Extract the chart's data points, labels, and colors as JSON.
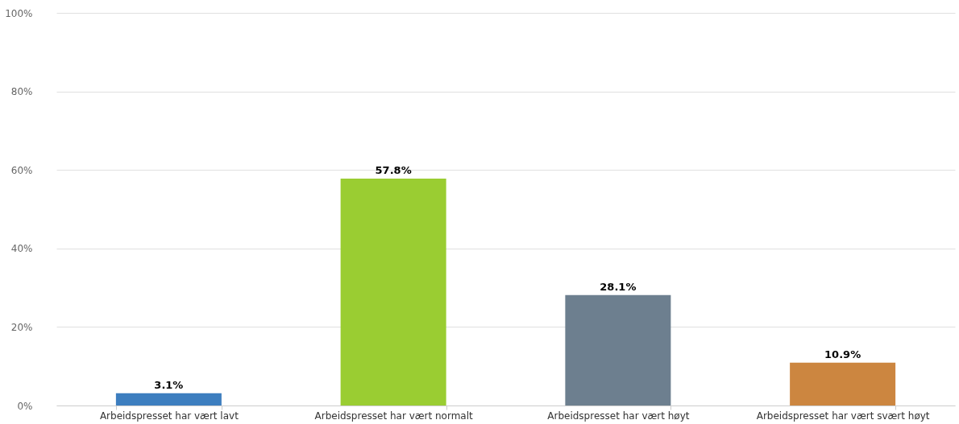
{
  "chart_data": {
    "type": "bar",
    "categories": [
      "Arbeidspresset har vært lavt",
      "Arbeidspresset har vært normalt",
      "Arbeidspresset har vært høyt",
      "Arbeidspresset har vært svært høyt"
    ],
    "values": [
      3.1,
      57.8,
      28.1,
      10.9
    ],
    "colors": [
      "#3d7ebf",
      "#9acd32",
      "#6d7f8f",
      "#cc8640"
    ],
    "value_labels": [
      "3.1%",
      "57.8%",
      "28.1%",
      "10.9%"
    ],
    "ylim": [
      0,
      100
    ],
    "yticks": [
      {
        "value": 0,
        "label": "0%"
      },
      {
        "value": 20,
        "label": "20%"
      },
      {
        "value": 40,
        "label": "40%"
      },
      {
        "value": 60,
        "label": "60%"
      },
      {
        "value": 80,
        "label": "80%"
      },
      {
        "value": 100,
        "label": "100%"
      }
    ],
    "grid": "y",
    "legend": false
  }
}
